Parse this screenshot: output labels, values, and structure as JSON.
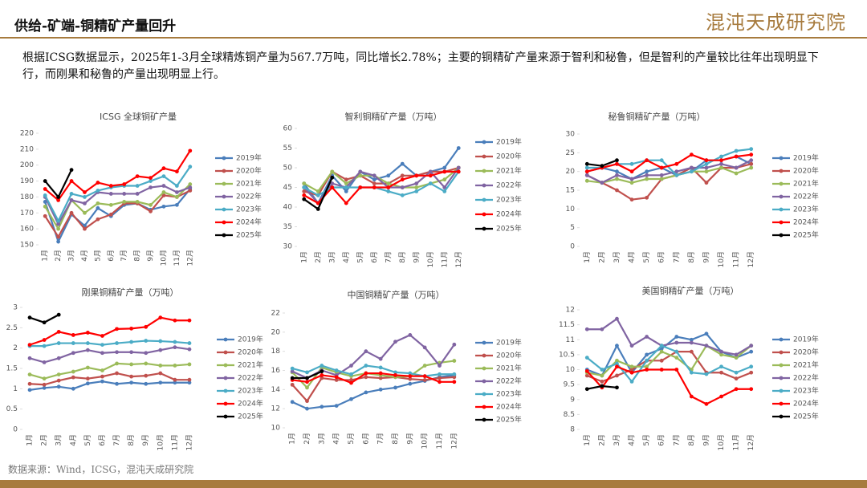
{
  "header": {
    "title": "供给-矿端-铜精矿产量回升",
    "logo": "混沌天成研究院",
    "text": "根据ICSG数据显示，2025年1-3月全球精炼铜产量为567.7万吨，同比增长2.78%；主要的铜精矿产量来源于智利和秘鲁，但是智利的产量较比往年出现明显下行，而刚果和秘鲁的产量出现明显上行。",
    "source": "数据来源：Wind，ICSG，混沌天成研究院"
  },
  "chart_data": [
    {
      "type": "line",
      "title": "ICSG 全球铜矿产量",
      "categories": [
        "1月",
        "2月",
        "3月",
        "4月",
        "5月",
        "6月",
        "7月",
        "8月",
        "9月",
        "10月",
        "11月",
        "12月"
      ],
      "ylim": [
        150,
        220
      ],
      "yticks": [
        150,
        160,
        170,
        180,
        190,
        200,
        210,
        220
      ],
      "series": [
        {
          "name": "2019年",
          "color": "#4a7ebb",
          "values": [
            177,
            152,
            169,
            162,
            173,
            168,
            175,
            176,
            172,
            174,
            175,
            185
          ]
        },
        {
          "name": "2020年",
          "color": "#c0504d",
          "values": [
            168,
            155,
            170,
            160,
            166,
            169,
            176,
            176,
            171,
            181,
            180,
            184
          ]
        },
        {
          "name": "2021年",
          "color": "#9bbb59",
          "values": [
            174,
            160,
            178,
            170,
            176,
            175,
            177,
            177,
            175,
            183,
            180,
            188
          ]
        },
        {
          "name": "2022年",
          "color": "#8064a2",
          "values": [
            180,
            163,
            178,
            176,
            183,
            182,
            182,
            182,
            186,
            187,
            183,
            186
          ]
        },
        {
          "name": "2023年",
          "color": "#4bacc6",
          "values": [
            181,
            165,
            182,
            180,
            184,
            186,
            187,
            187,
            190,
            193,
            187,
            199
          ]
        },
        {
          "name": "2024年",
          "color": "#ff0000",
          "values": [
            185,
            178,
            190,
            183,
            189,
            187,
            188,
            193,
            192,
            198,
            196,
            209
          ]
        },
        {
          "name": "2025年",
          "color": "#000000",
          "values": [
            190,
            180,
            197,
            null,
            null,
            null,
            null,
            null,
            null,
            null,
            null,
            null
          ]
        }
      ]
    },
    {
      "type": "line",
      "title": "智利铜精矿产量（万吨）",
      "categories": [
        "1月",
        "2月",
        "3月",
        "4月",
        "5月",
        "6月",
        "7月",
        "8月",
        "9月",
        "10月",
        "11月",
        "12月"
      ],
      "ylim": [
        30,
        60
      ],
      "yticks": [
        30,
        35,
        40,
        45,
        50,
        55,
        60
      ],
      "series": [
        {
          "name": "2019年",
          "color": "#4a7ebb",
          "values": [
            46,
            41,
            48,
            44,
            49,
            47,
            48,
            51,
            48,
            49,
            50,
            55
          ]
        },
        {
          "name": "2020年",
          "color": "#c0504d",
          "values": [
            44,
            43,
            49,
            47,
            48,
            46,
            46,
            48,
            48,
            49,
            49,
            50
          ]
        },
        {
          "name": "2021年",
          "color": "#9bbb59",
          "values": [
            46,
            44,
            49,
            46,
            48,
            48,
            46,
            45,
            45,
            46,
            47,
            50
          ]
        },
        {
          "name": "2022年",
          "color": "#8064a2",
          "values": [
            45,
            41,
            46,
            45,
            49,
            48,
            45,
            45,
            46,
            49,
            45,
            50
          ]
        },
        {
          "name": "2023年",
          "color": "#4bacc6",
          "values": [
            45,
            43,
            45,
            45,
            45,
            45,
            44,
            43,
            44,
            46,
            44,
            49
          ]
        },
        {
          "name": "2024年",
          "color": "#ff0000",
          "values": [
            43,
            41,
            45,
            41,
            45,
            45,
            45,
            47,
            48,
            48,
            49,
            49
          ]
        },
        {
          "name": "2025年",
          "color": "#000000",
          "values": [
            42,
            39.5,
            47.5,
            null,
            null,
            null,
            null,
            null,
            null,
            null,
            null,
            null
          ]
        }
      ]
    },
    {
      "type": "line",
      "title": "秘鲁铜精矿产量（万吨）",
      "categories": [
        "1月",
        "2月",
        "3月",
        "4月",
        "5月",
        "6月",
        "7月",
        "8月",
        "9月",
        "10月",
        "11月",
        "12月"
      ],
      "ylim": [
        0,
        30
      ],
      "yticks": [
        0,
        5,
        10,
        15,
        20,
        25,
        30
      ],
      "series": [
        {
          "name": "2019年",
          "color": "#4a7ebb",
          "values": [
            20,
            21,
            20,
            18,
            20,
            21,
            19,
            20,
            23,
            23,
            24,
            22
          ]
        },
        {
          "name": "2020年",
          "color": "#c0504d",
          "values": [
            19,
            17,
            15,
            12.5,
            13,
            18,
            19,
            21,
            17,
            21,
            21,
            22
          ]
        },
        {
          "name": "2021年",
          "color": "#9bbb59",
          "values": [
            17.5,
            17,
            18,
            17,
            18,
            18,
            19,
            20,
            20,
            21,
            19.5,
            21
          ]
        },
        {
          "name": "2022年",
          "color": "#8064a2",
          "values": [
            19,
            17,
            19,
            18,
            19,
            19,
            20,
            21,
            21,
            22,
            21,
            23
          ]
        },
        {
          "name": "2023年",
          "color": "#4bacc6",
          "values": [
            21,
            21,
            22,
            22,
            23,
            23,
            19,
            20,
            22,
            24,
            25.5,
            26
          ]
        },
        {
          "name": "2024年",
          "color": "#ff0000",
          "values": [
            20,
            21,
            22,
            20,
            23,
            21,
            22,
            24.5,
            23,
            23,
            24,
            24.5
          ]
        },
        {
          "name": "2025年",
          "color": "#000000",
          "values": [
            22,
            21.5,
            23,
            null,
            null,
            null,
            null,
            null,
            null,
            null,
            null,
            null
          ]
        }
      ]
    },
    {
      "type": "line",
      "title": "刚果铜精矿产量（万吨）",
      "categories": [
        "1月",
        "2月",
        "3月",
        "4月",
        "5月",
        "6月",
        "7月",
        "8月",
        "9月",
        "10月",
        "11月",
        "12月"
      ],
      "ylim": [
        0,
        3
      ],
      "yticks": [
        0,
        0.5,
        1,
        1.5,
        2,
        2.5,
        3
      ],
      "series": [
        {
          "name": "2019年",
          "color": "#4a7ebb",
          "values": [
            0.97,
            1.02,
            1.05,
            1.0,
            1.13,
            1.18,
            1.12,
            1.15,
            1.12,
            1.15,
            1.15,
            1.15
          ]
        },
        {
          "name": "2020年",
          "color": "#c0504d",
          "values": [
            1.12,
            1.1,
            1.2,
            1.28,
            1.25,
            1.3,
            1.38,
            1.3,
            1.32,
            1.38,
            1.22,
            1.22
          ]
        },
        {
          "name": "2021年",
          "color": "#9bbb59",
          "values": [
            1.35,
            1.25,
            1.35,
            1.42,
            1.52,
            1.45,
            1.62,
            1.6,
            1.62,
            1.57,
            1.57,
            1.6
          ]
        },
        {
          "name": "2022年",
          "color": "#8064a2",
          "values": [
            1.75,
            1.65,
            1.75,
            1.88,
            1.95,
            1.88,
            1.9,
            1.9,
            1.88,
            1.95,
            2.02,
            1.97
          ]
        },
        {
          "name": "2023年",
          "color": "#4bacc6",
          "values": [
            2.05,
            2.05,
            2.12,
            2.12,
            2.12,
            2.08,
            2.12,
            2.15,
            2.18,
            2.17,
            2.15,
            2.12
          ]
        },
        {
          "name": "2024年",
          "color": "#ff0000",
          "values": [
            2.08,
            2.2,
            2.4,
            2.32,
            2.38,
            2.3,
            2.47,
            2.48,
            2.52,
            2.75,
            2.68,
            2.68
          ]
        },
        {
          "name": "2025年",
          "color": "#000000",
          "values": [
            2.75,
            2.63,
            2.82,
            null,
            null,
            null,
            null,
            null,
            null,
            null,
            null,
            null
          ]
        }
      ]
    },
    {
      "type": "line",
      "title": "中国铜精矿产量（万吨）",
      "categories": [
        "1月",
        "2月",
        "3月",
        "4月",
        "5月",
        "6月",
        "7月",
        "8月",
        "9月",
        "10月",
        "11月",
        "12月"
      ],
      "ylim": [
        10,
        22
      ],
      "yticks": [
        10,
        12,
        14,
        16,
        18,
        20,
        22
      ],
      "series": [
        {
          "name": "2019年",
          "color": "#4a7ebb",
          "values": [
            12.7,
            12.0,
            12.2,
            12.3,
            13.0,
            13.7,
            14.0,
            14.2,
            14.6,
            14.9,
            15.3,
            15.5
          ]
        },
        {
          "name": "2020年",
          "color": "#c0504d",
          "values": [
            14.5,
            12.8,
            15.2,
            15.0,
            15.0,
            15.3,
            15.2,
            15.3,
            15.1,
            15.0,
            15.2,
            15.3
          ]
        },
        {
          "name": "2021年",
          "color": "#9bbb59",
          "values": [
            15.8,
            14.2,
            16.3,
            15.8,
            15.4,
            15.7,
            15.5,
            15.3,
            15.4,
            16.5,
            16.8,
            17.0
          ]
        },
        {
          "name": "2022年",
          "color": "#8064a2",
          "values": [
            15.9,
            15.2,
            16.0,
            15.5,
            16.5,
            18.0,
            17.2,
            19.0,
            19.7,
            18.4,
            16.5,
            18.7
          ]
        },
        {
          "name": "2023年",
          "color": "#4bacc6",
          "values": [
            16.2,
            15.8,
            16.5,
            16.0,
            15.6,
            16.5,
            16.3,
            15.8,
            15.7,
            15.4,
            15.6,
            15.6
          ]
        },
        {
          "name": "2024年",
          "color": "#ff0000",
          "values": [
            15.0,
            14.8,
            15.5,
            15.3,
            14.7,
            15.7,
            15.7,
            15.5,
            15.4,
            15.4,
            14.8,
            14.8
          ]
        },
        {
          "name": "2025年",
          "color": "#000000",
          "values": [
            15.2,
            15.2,
            15.9,
            null,
            null,
            null,
            null,
            null,
            null,
            null,
            null,
            null
          ]
        }
      ]
    },
    {
      "type": "line",
      "title": "美国铜精矿产量（万吨）",
      "categories": [
        "1月",
        "2月",
        "3月",
        "4月",
        "5月",
        "6月",
        "7月",
        "8月",
        "9月",
        "10月",
        "11月",
        "12月"
      ],
      "ylim": [
        8,
        12
      ],
      "yticks": [
        8,
        8.5,
        9,
        9.5,
        10,
        10.5,
        11,
        11.5,
        12
      ],
      "series": [
        {
          "name": "2019年",
          "color": "#4a7ebb",
          "values": [
            10.0,
            9.8,
            10.8,
            9.9,
            10.5,
            10.7,
            11.1,
            11.0,
            11.2,
            10.6,
            10.4,
            10.6
          ]
        },
        {
          "name": "2020年",
          "color": "#c0504d",
          "values": [
            9.8,
            9.6,
            9.8,
            10.0,
            10.3,
            10.3,
            10.6,
            10.6,
            9.9,
            9.9,
            9.7,
            9.9
          ]
        },
        {
          "name": "2021年",
          "color": "#9bbb59",
          "values": [
            9.9,
            9.8,
            10.3,
            10.1,
            10.1,
            10.6,
            10.4,
            10.0,
            10.8,
            10.5,
            10.4,
            10.8
          ]
        },
        {
          "name": "2022年",
          "color": "#8064a2",
          "values": [
            11.35,
            11.35,
            11.7,
            10.8,
            11.1,
            10.8,
            10.9,
            10.9,
            10.8,
            10.6,
            10.5,
            10.8
          ]
        },
        {
          "name": "2023年",
          "color": "#4bacc6",
          "values": [
            10.4,
            10.0,
            10.2,
            9.6,
            10.3,
            10.8,
            10.6,
            9.9,
            9.85,
            10.1,
            9.9,
            10.1
          ]
        },
        {
          "name": "2024年",
          "color": "#ff0000",
          "values": [
            9.95,
            9.4,
            10.1,
            9.9,
            10.0,
            10.0,
            10.0,
            9.1,
            8.85,
            9.1,
            9.35,
            9.35
          ]
        },
        {
          "name": "2025年",
          "color": "#000000",
          "values": [
            9.35,
            9.45,
            9.4,
            null,
            null,
            null,
            null,
            null,
            null,
            null,
            null,
            null
          ]
        }
      ]
    }
  ]
}
